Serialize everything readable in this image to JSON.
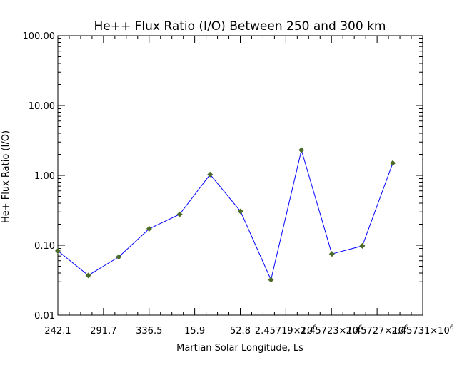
{
  "chart_data": {
    "type": "line",
    "title": "He++ Flux Ratio (I/O) Between 250 and 300 km",
    "xlabel": "Martian Solar Longitude, Ls",
    "ylabel": "He+ Flux Ratio (I/O)",
    "yscale": "log",
    "ylim": [
      0.01,
      100
    ],
    "y_tick_labels": [
      "0.01",
      "0.10",
      "1.00",
      "10.00",
      "100.00"
    ],
    "x_tick_labels": [
      "242.1",
      "291.7",
      "336.5",
      "15.9",
      "52.8",
      "2.45719×10",
      "2.45723×10",
      "2.45727×10",
      "2.45731×10"
    ],
    "x_tick_exponent": "6",
    "series": [
      {
        "color": "#0000ff",
        "marker_color": "#4a6b2a",
        "values": [
          0.083,
          0.037,
          0.068,
          0.172,
          0.277,
          1.03,
          0.305,
          0.032,
          2.3,
          0.075,
          0.098,
          1.5
        ]
      }
    ],
    "grid": false
  }
}
